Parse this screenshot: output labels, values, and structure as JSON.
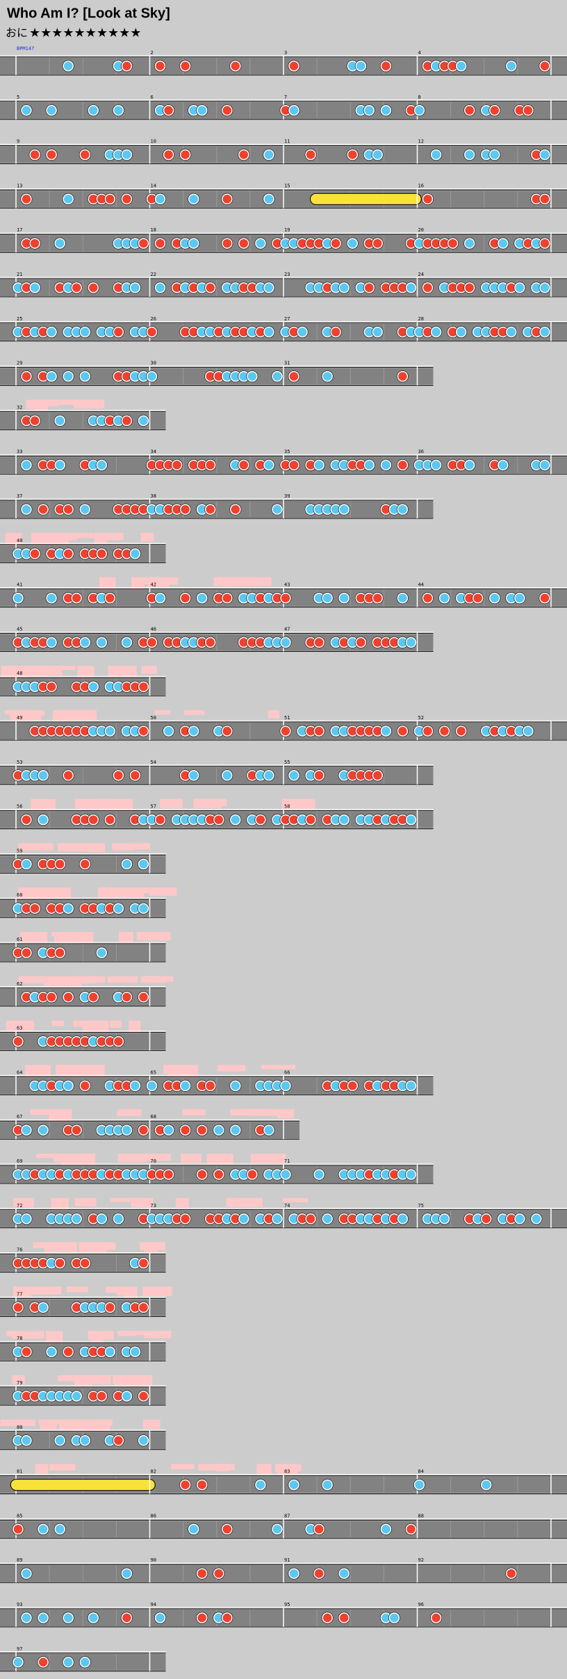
{
  "header": {
    "title": "Who Am I? [Look at Sky]",
    "difficulty": "おに",
    "stars": "★★★★★★★★★★",
    "bpm": "BPM147"
  },
  "rows": [
    [
      null,
      2,
      3,
      4
    ],
    [
      5,
      6,
      7,
      8
    ],
    [
      9,
      10,
      11,
      12
    ],
    [
      13,
      14,
      15,
      16
    ],
    [
      17,
      18,
      19,
      20
    ],
    [
      21,
      22,
      23,
      24
    ],
    [
      25,
      26,
      27,
      28
    ],
    [
      29,
      30,
      31
    ],
    [
      32
    ],
    [
      33,
      34,
      35,
      36
    ],
    [
      37,
      38,
      39
    ],
    [
      40
    ],
    [
      41,
      42,
      43,
      44
    ],
    [
      45,
      46,
      47
    ],
    [
      48
    ],
    [
      49,
      50,
      51,
      52
    ],
    [
      53,
      54,
      55
    ],
    [
      56,
      57,
      58
    ],
    [
      59
    ],
    [
      60
    ],
    [
      61
    ],
    [
      62
    ],
    [
      63
    ],
    [
      64,
      65,
      66
    ],
    [
      67,
      68
    ],
    [
      69,
      70,
      71
    ],
    [
      72,
      73,
      74,
      75
    ],
    [
      76
    ],
    [
      77
    ],
    [
      78
    ],
    [
      79
    ],
    [
      80
    ],
    [
      81,
      82,
      83,
      84
    ],
    [
      85,
      86,
      87,
      88
    ],
    [
      89,
      90,
      91,
      92
    ],
    [
      93,
      94,
      95,
      96
    ],
    [
      97
    ]
  ]
}
